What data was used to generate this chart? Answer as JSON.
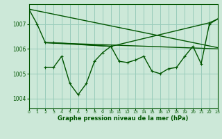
{
  "background_color": "#cce8d8",
  "grid_color": "#99ccbb",
  "line_color": "#005500",
  "xlabel": "Graphe pression niveau de la mer (hPa)",
  "xlim": [
    0,
    23
  ],
  "ylim": [
    1003.6,
    1007.8
  ],
  "yticks": [
    1004,
    1005,
    1006,
    1007
  ],
  "xticks": [
    0,
    1,
    2,
    3,
    4,
    5,
    6,
    7,
    8,
    9,
    10,
    11,
    12,
    13,
    14,
    15,
    16,
    17,
    18,
    19,
    20,
    21,
    22,
    23
  ],
  "series1_x": [
    0,
    1,
    2,
    3,
    10,
    22,
    23
  ],
  "series1_y": [
    1007.6,
    1007.0,
    1006.25,
    1006.25,
    1006.1,
    1007.05,
    1007.2
  ],
  "series2_x": [
    2,
    3,
    4,
    5,
    6,
    7,
    8,
    9,
    10,
    11,
    12,
    13,
    14,
    15,
    16,
    17,
    18,
    19,
    20,
    21,
    22,
    23
  ],
  "series2_y": [
    1005.25,
    1005.25,
    1005.7,
    1004.6,
    1004.15,
    1004.6,
    1005.5,
    1005.85,
    1006.1,
    1005.5,
    1005.45,
    1005.55,
    1005.7,
    1005.1,
    1005.0,
    1005.2,
    1005.25,
    1005.7,
    1006.1,
    1005.4,
    1007.0,
    1007.2
  ],
  "series3_x": [
    0,
    23
  ],
  "series3_y": [
    1007.6,
    1006.05
  ],
  "series4_x": [
    2,
    23
  ],
  "series4_y": [
    1006.25,
    1006.0
  ],
  "series5_x": [
    2,
    10
  ],
  "series5_y": [
    1006.25,
    1006.1
  ]
}
